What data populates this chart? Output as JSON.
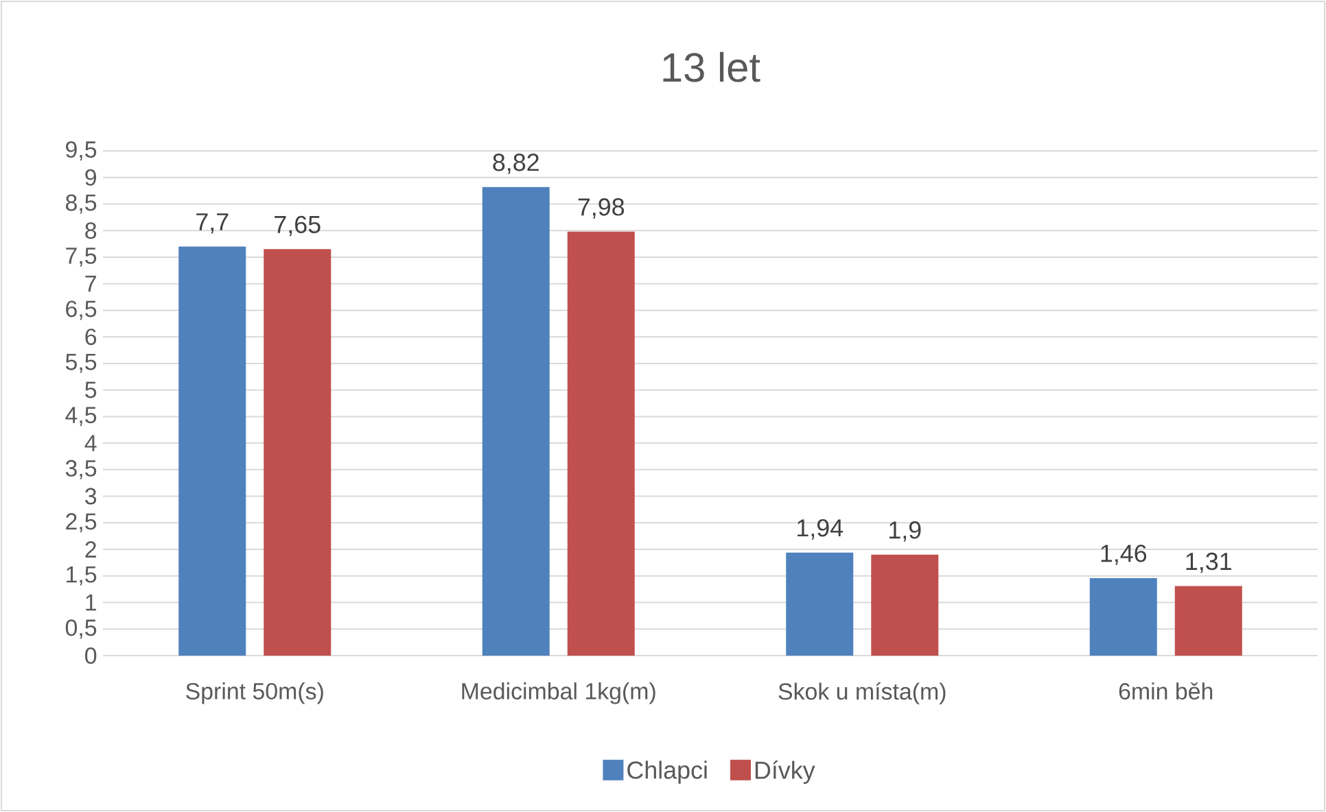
{
  "chart_data": {
    "type": "bar",
    "title": "13 let",
    "categories": [
      "Sprint 50m(s)",
      "Medicimbal 1kg(m)",
      "Skok u místa(m)",
      "6min běh"
    ],
    "series": [
      {
        "name": "Chlapci",
        "color": "#4f81bd",
        "values": [
          7.7,
          8.82,
          1.94,
          1.46
        ],
        "value_labels": [
          "7,7",
          "8,82",
          "1,94",
          "1,46"
        ]
      },
      {
        "name": "Dívky",
        "color": "#c0504d",
        "values": [
          7.65,
          7.98,
          1.9,
          1.31
        ],
        "value_labels": [
          "7,65",
          "7,98",
          "1,9",
          "1,31"
        ]
      }
    ],
    "ylim": [
      0,
      9.5
    ],
    "yticks": [
      0,
      {
        "value": 0.5,
        "label": "0,5"
      },
      1,
      {
        "value": 1.5,
        "label": "1,5"
      },
      2,
      {
        "value": 2.5,
        "label": "2,5"
      },
      3,
      {
        "value": 3.5,
        "label": "3,5"
      },
      4,
      {
        "value": 4.5,
        "label": "4,5"
      },
      5,
      {
        "value": 5.5,
        "label": "5,5"
      },
      6,
      {
        "value": 6.5,
        "label": "6,5"
      },
      7,
      {
        "value": 7.5,
        "label": "7,5"
      },
      8,
      {
        "value": 8.5,
        "label": "8,5"
      },
      9,
      {
        "value": 9.5,
        "label": "9,5"
      }
    ],
    "grid": "y",
    "legend": "bottom"
  }
}
